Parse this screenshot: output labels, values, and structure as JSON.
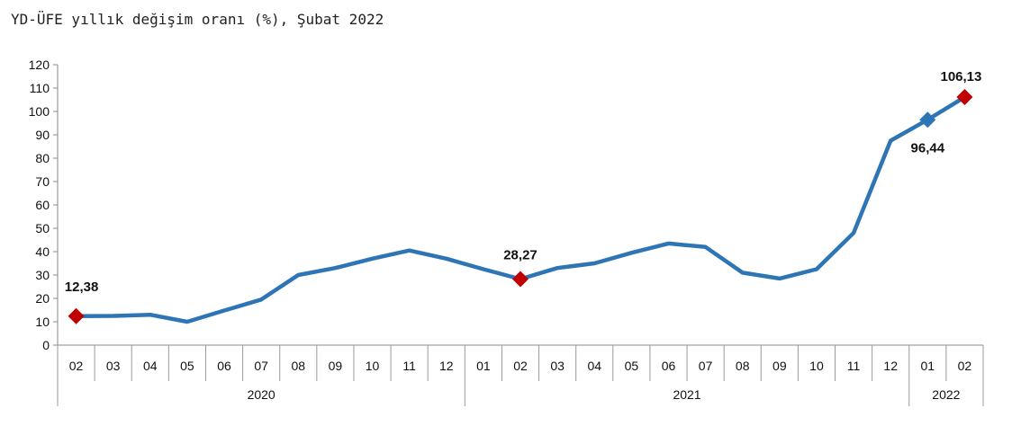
{
  "title": "YD-ÜFE yıllık değişim oranı (%), Şubat 2022",
  "chart_data": {
    "type": "line",
    "title": "YD-ÜFE yıllık değişim oranı (%), Şubat 2022",
    "xlabel": "",
    "ylabel": "",
    "ylim": [
      0,
      120
    ],
    "yticks": [
      "0",
      "10",
      "20",
      "30",
      "40",
      "50",
      "60",
      "70",
      "80",
      "90",
      "100",
      "110",
      "120"
    ],
    "grid": false,
    "categories": [
      "02",
      "03",
      "04",
      "05",
      "06",
      "07",
      "08",
      "09",
      "10",
      "11",
      "12",
      "01",
      "02",
      "03",
      "04",
      "05",
      "06",
      "07",
      "08",
      "09",
      "10",
      "11",
      "12",
      "01",
      "02"
    ],
    "year_groups": [
      {
        "label": "2020",
        "start": 0,
        "end": 10
      },
      {
        "label": "2021",
        "start": 11,
        "end": 22
      },
      {
        "label": "2022",
        "start": 23,
        "end": 24
      }
    ],
    "series": [
      {
        "values": [
          12.38,
          12.5,
          13.0,
          10.0,
          14.8,
          19.5,
          30.0,
          33.0,
          37.0,
          40.5,
          37.0,
          32.5,
          28.27,
          33.0,
          35.0,
          39.5,
          43.5,
          42.0,
          31.0,
          28.5,
          32.5,
          48.0,
          87.5,
          96.44,
          106.13
        ],
        "color": "#2e75b6"
      }
    ],
    "highlighted_points": [
      {
        "index": 0,
        "label": "12,38",
        "color": "#c00000"
      },
      {
        "index": 12,
        "label": "28,27",
        "color": "#c00000"
      },
      {
        "index": 23,
        "label": "96,44",
        "color": "#2e75b6"
      },
      {
        "index": 24,
        "label": "106,13",
        "color": "#c00000"
      }
    ]
  }
}
